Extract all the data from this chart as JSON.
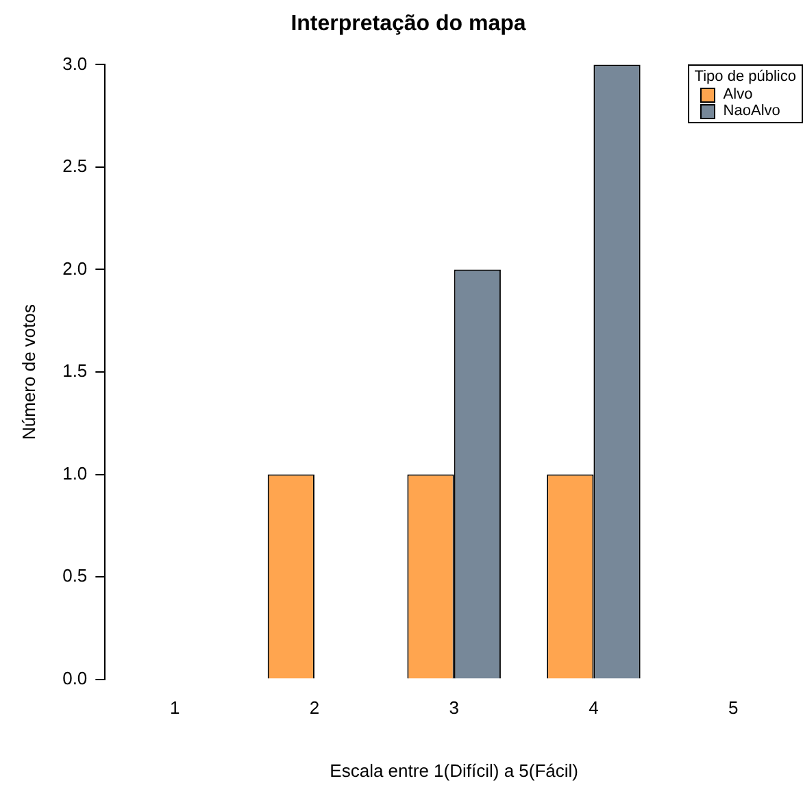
{
  "chart_data": {
    "type": "bar",
    "title": "Interpretação do mapa",
    "xlabel": "Escala entre 1(Difícil) a 5(Fácil)",
    "ylabel": "Número de votos",
    "legend_title": "Tipo de público",
    "categories": [
      "1",
      "2",
      "3",
      "4",
      "5"
    ],
    "series": [
      {
        "name": "Alvo",
        "color": "#ffa54f",
        "values": [
          0,
          1,
          1,
          1,
          0
        ]
      },
      {
        "name": "NaoAlvo",
        "color": "#778899",
        "values": [
          0,
          0,
          2,
          3,
          0
        ]
      }
    ],
    "ylim": [
      0,
      3
    ],
    "yticks": [
      {
        "value": 0,
        "label": "0.0"
      },
      0.5,
      {
        "value": 1,
        "label": "1.0"
      },
      1.5,
      {
        "value": 2,
        "label": "2.0"
      },
      2.5,
      {
        "value": 3,
        "label": "3.0"
      }
    ],
    "grid": false,
    "legend": "top right"
  }
}
